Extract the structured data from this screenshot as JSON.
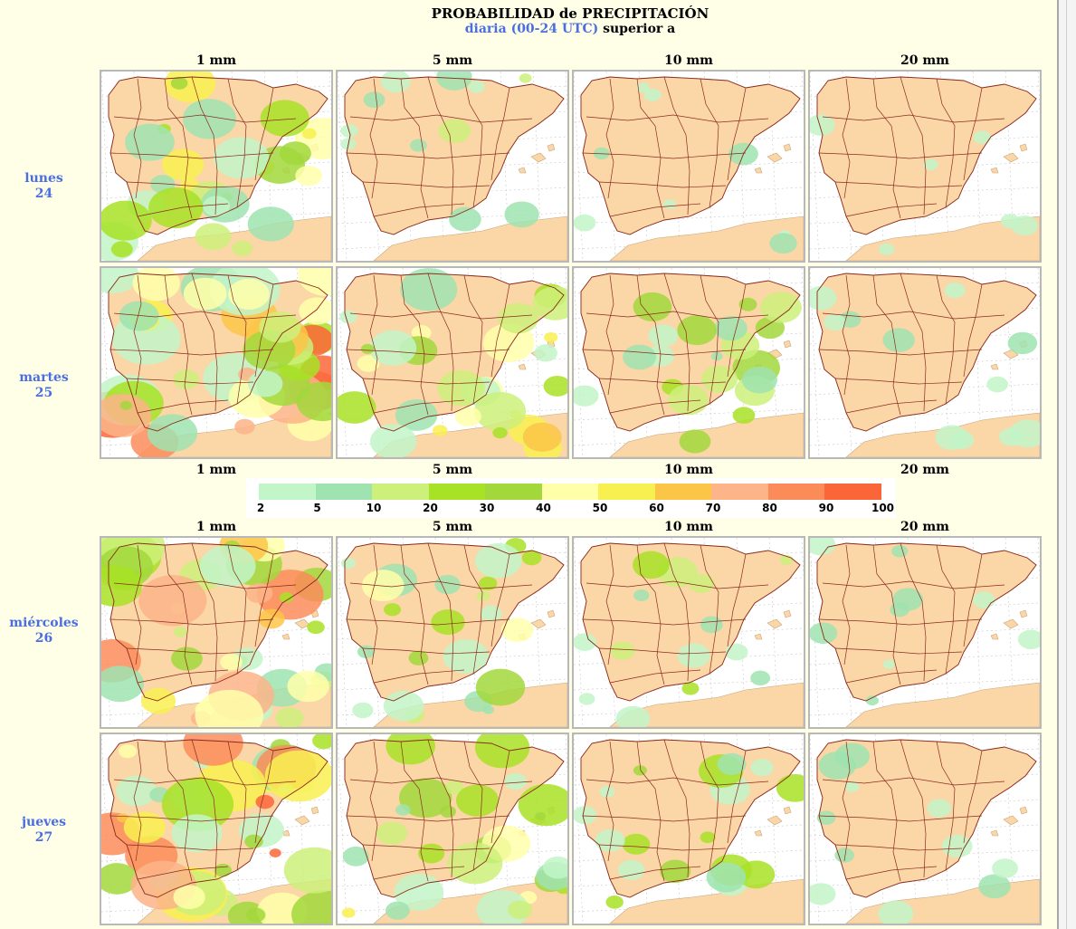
{
  "header": {
    "title": "PROBABILIDAD de PRECIPITACIÓN",
    "subtitle_blue": "diaria (00-24 UTC)",
    "subtitle_black": "superior a"
  },
  "thresholds": [
    "1 mm",
    "5 mm",
    "10 mm",
    "20 mm"
  ],
  "days": [
    {
      "name": "lunes",
      "num": "24"
    },
    {
      "name": "martes",
      "num": "25"
    },
    {
      "name": "miércoles",
      "num": "26"
    },
    {
      "name": "jueves",
      "num": "27"
    }
  ],
  "legend": {
    "labels": [
      "2",
      "5",
      "10",
      "20",
      "30",
      "40",
      "50",
      "60",
      "70",
      "80",
      "90",
      "100"
    ],
    "colors": [
      "#c2f5c8",
      "#9fe3b0",
      "#cdf07a",
      "#a8e226",
      "#a2d83c",
      "#ffffaa",
      "#f8f050",
      "#fbc548",
      "#fcb488",
      "#fb8c5a",
      "#fb6638"
    ]
  },
  "map_colors": {
    "land": "#fbd6a6",
    "sea": "#ffffff",
    "border": "#8b2b1e",
    "grid": "#c8c8c8"
  },
  "probability_levels": [
    [
      0.55,
      0.12,
      0.04,
      0.0
    ],
    [
      0.85,
      0.55,
      0.35,
      0.12
    ],
    [
      0.8,
      0.4,
      0.2,
      0.08
    ],
    [
      0.85,
      0.5,
      0.3,
      0.12
    ]
  ]
}
